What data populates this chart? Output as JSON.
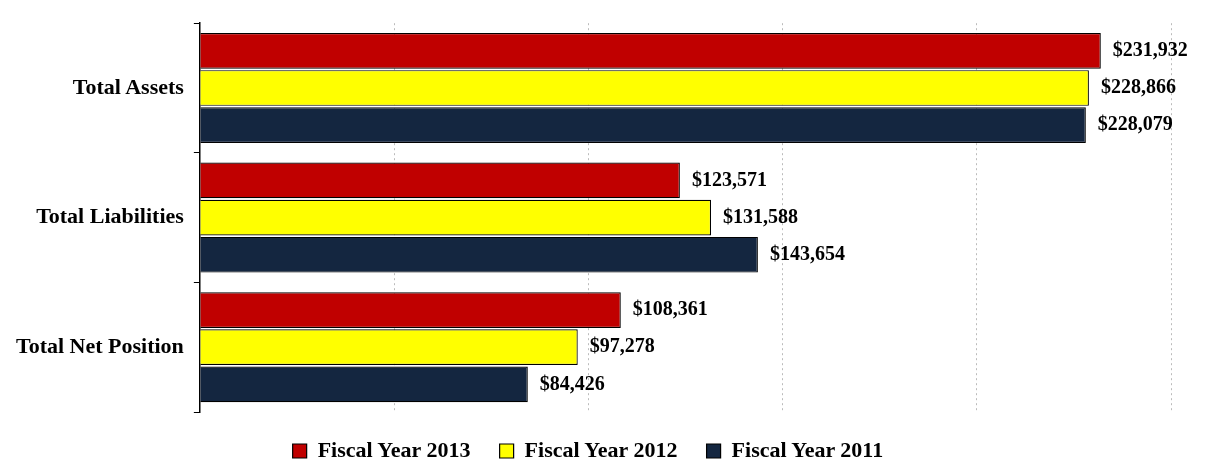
{
  "chart_data": {
    "type": "bar",
    "orientation": "horizontal",
    "categories": [
      "Total Assets",
      "Total Liabilities",
      "Total Net Position"
    ],
    "series": [
      {
        "name": "Fiscal Year 2013",
        "color": "#c00000",
        "values": [
          231932,
          123571,
          108361
        ],
        "value_labels": [
          "$231,932",
          "$123,571",
          "$108,361"
        ]
      },
      {
        "name": "Fiscal Year 2012",
        "color": "#ffff00",
        "values": [
          228866,
          131588,
          97278
        ],
        "value_labels": [
          "$228,866",
          "$131,588",
          "$97,278"
        ]
      },
      {
        "name": "Fiscal Year 2011",
        "color": "#142640",
        "values": [
          228079,
          143654,
          84426
        ],
        "value_labels": [
          "$228,079",
          "$143,654",
          "$84,426"
        ]
      }
    ],
    "xlim": [
      0,
      250000
    ],
    "xticks": [
      {
        "value": 0,
        "label": null
      },
      {
        "value": 50000,
        "label": null
      },
      {
        "value": 100000,
        "label": null
      },
      {
        "value": 150000,
        "label": null
      },
      {
        "value": 200000,
        "label": null
      },
      {
        "value": 250000,
        "label": null
      }
    ],
    "tick_labels": "y",
    "grid": "x",
    "legend": "bottom"
  }
}
